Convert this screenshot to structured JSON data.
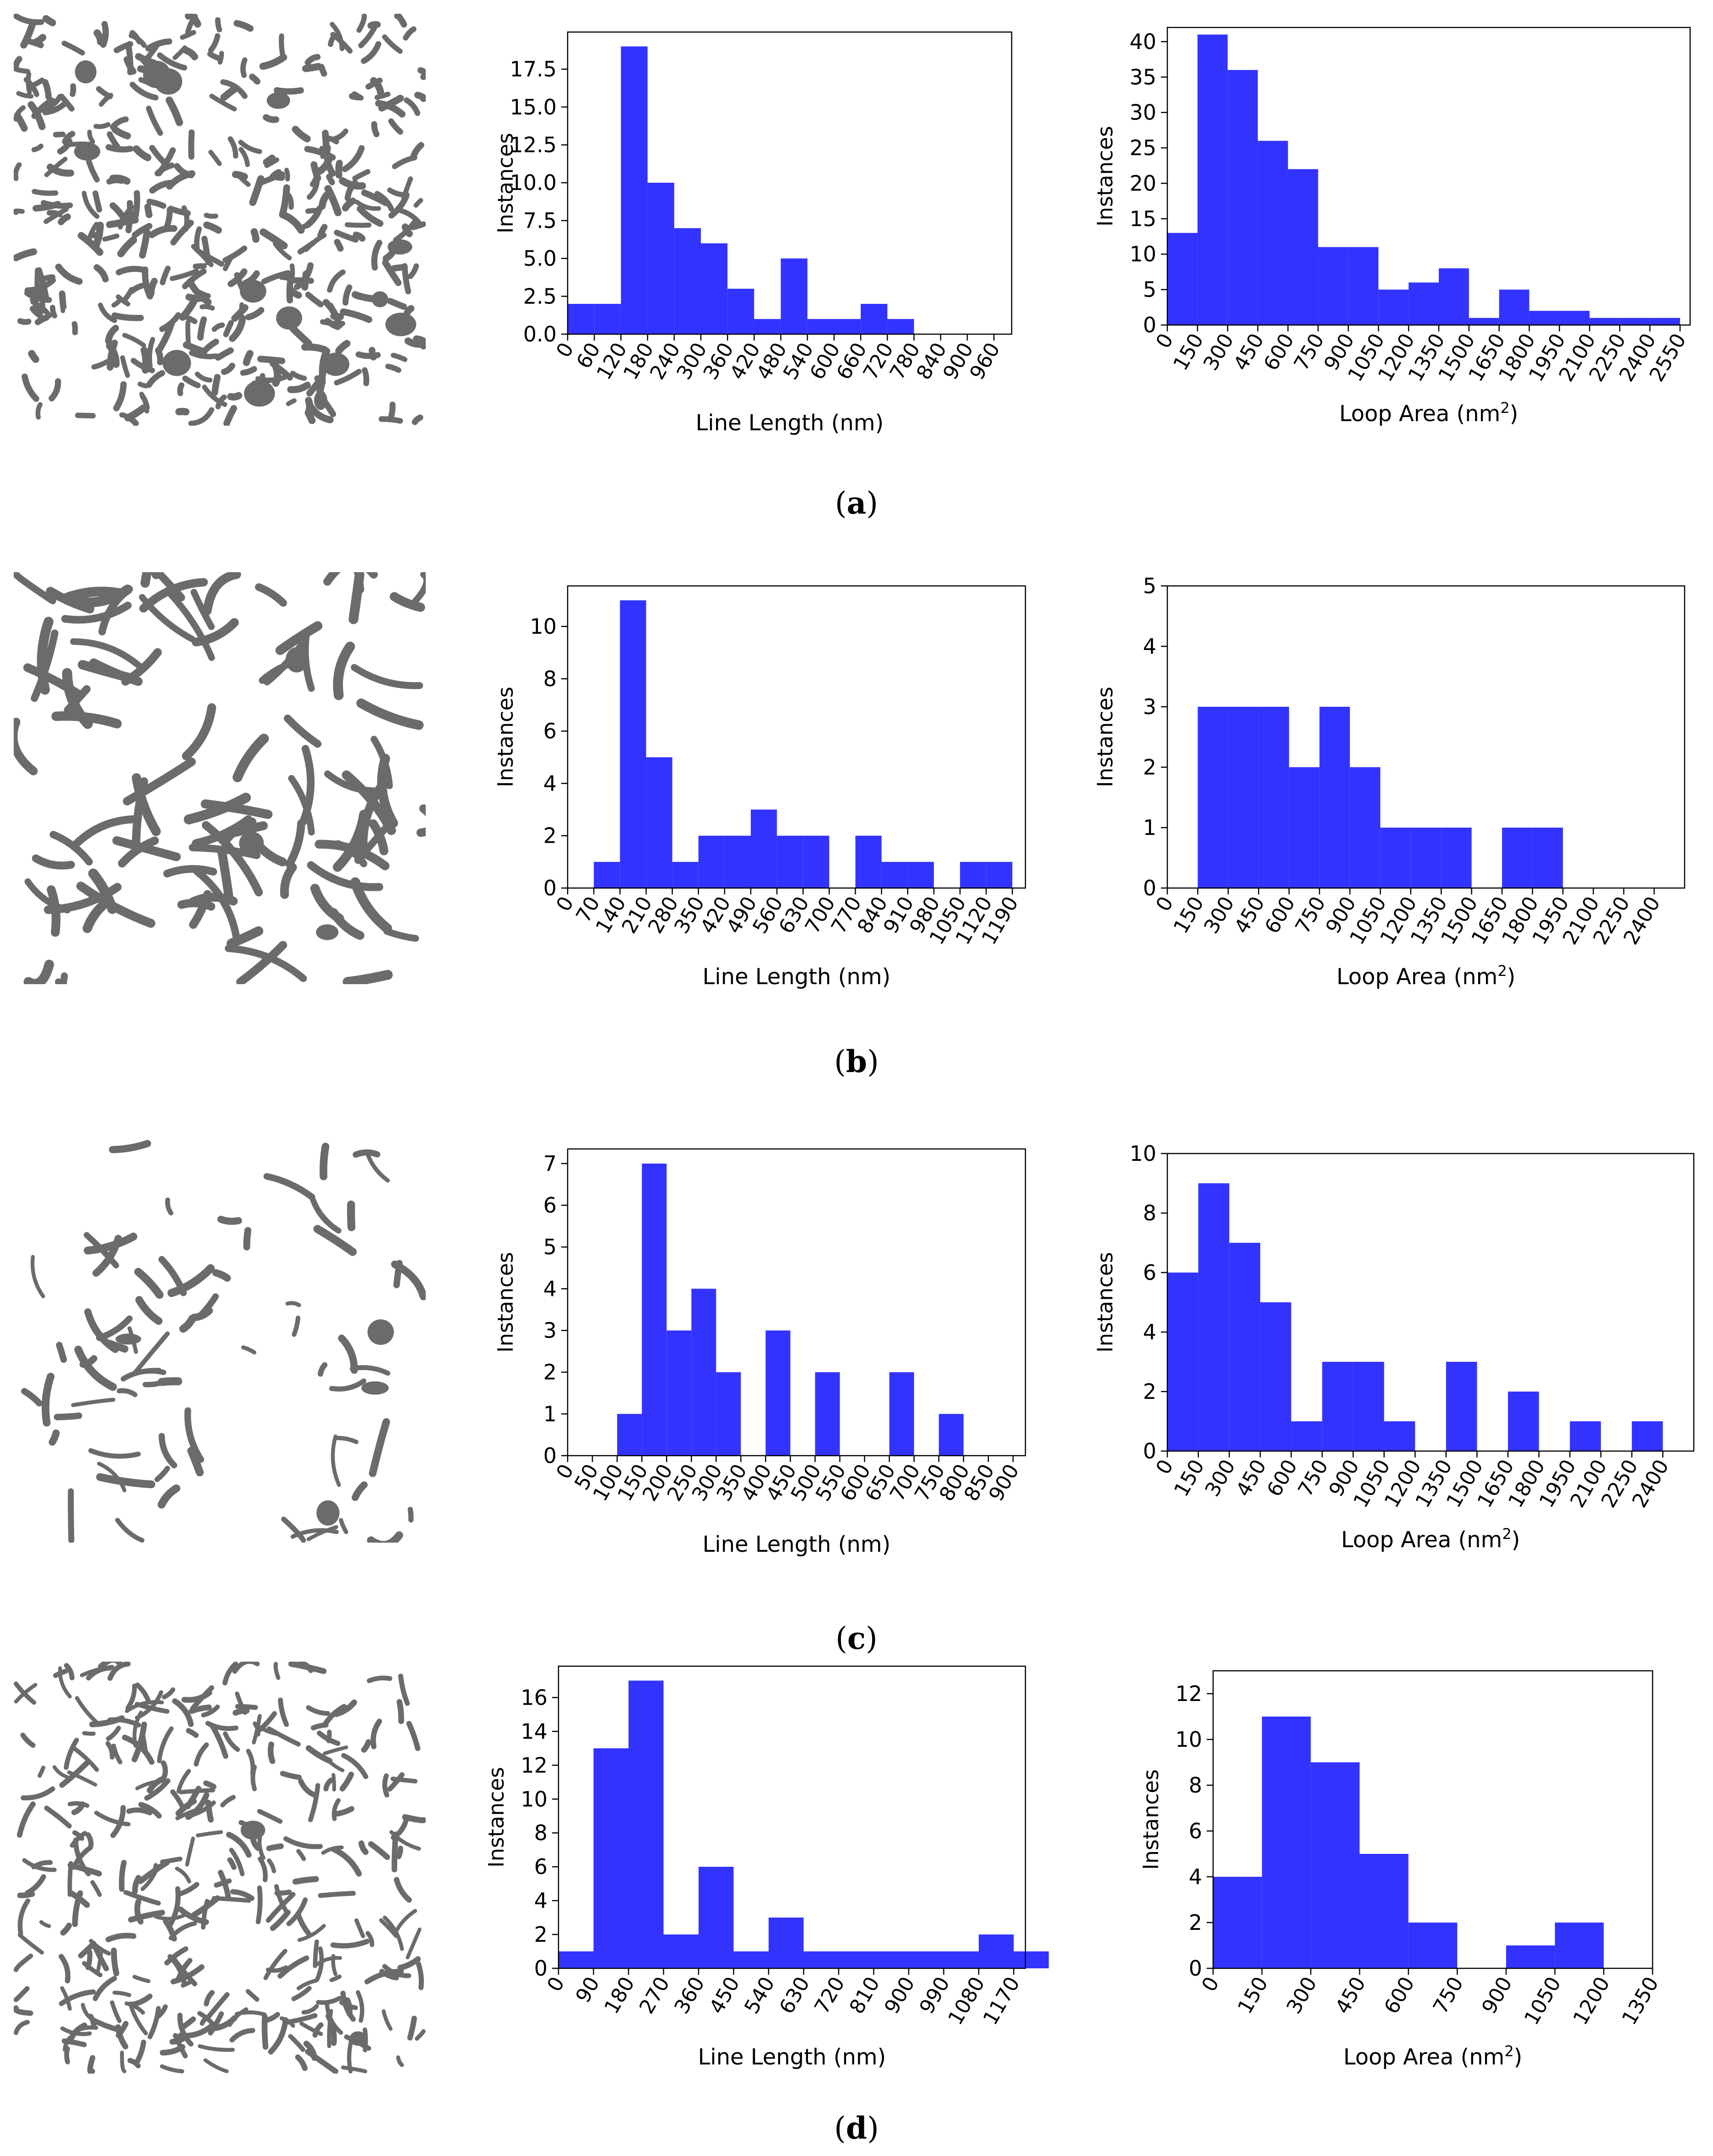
{
  "colors": {
    "bar": "#3333ff",
    "grain": "#6b6b6b",
    "axis": "#000000"
  },
  "panels": [
    {
      "label": "a",
      "charts": [
        {
          "type": "bar",
          "title": "",
          "xlabel": "Line Length (nm)",
          "xlabel_sup": "",
          "ylabel": "Instances",
          "bin_width": 60,
          "xlim": [
            0,
            1000
          ],
          "ylim": [
            0,
            19.95
          ],
          "xticks": [
            "0",
            "60",
            "120",
            "180",
            "240",
            "300",
            "360",
            "420",
            "480",
            "540",
            "600",
            "660",
            "720",
            "780",
            "840",
            "900",
            "960"
          ],
          "yticks": [
            "0.0",
            "2.5",
            "5.0",
            "7.5",
            "10.0",
            "12.5",
            "15.0",
            "17.5"
          ],
          "ytick_values": [
            0,
            2.5,
            5,
            7.5,
            10,
            12.5,
            15,
            17.5
          ],
          "values": [
            2,
            2,
            19,
            10,
            7,
            6,
            3,
            1,
            5,
            1,
            1,
            2,
            1,
            0,
            0,
            0
          ]
        },
        {
          "type": "bar",
          "title": "",
          "xlabel": "Loop Area (nm",
          "xlabel_sup": "2",
          "ylabel": "Instances",
          "bin_width": 150,
          "xlim": [
            0,
            2600
          ],
          "ylim": [
            0,
            42
          ],
          "xticks": [
            "0",
            "150",
            "300",
            "450",
            "600",
            "750",
            "900",
            "1050",
            "1200",
            "1350",
            "1500",
            "1650",
            "1800",
            "1950",
            "2100",
            "2250",
            "2400",
            "2550"
          ],
          "yticks": [
            "0",
            "5",
            "10",
            "15",
            "20",
            "25",
            "30",
            "35",
            "40"
          ],
          "ytick_values": [
            0,
            5,
            10,
            15,
            20,
            25,
            30,
            35,
            40
          ],
          "values": [
            13,
            41,
            36,
            26,
            22,
            11,
            11,
            5,
            6,
            8,
            1,
            5,
            2,
            2,
            1,
            1,
            1
          ]
        }
      ]
    },
    {
      "label": "b",
      "charts": [
        {
          "type": "bar",
          "title": "",
          "xlabel": "Line Length (nm)",
          "xlabel_sup": "",
          "ylabel": "Instances",
          "bin_width": 70,
          "xlim": [
            0,
            1225
          ],
          "ylim": [
            0,
            11.55
          ],
          "xticks": [
            "0",
            "70",
            "140",
            "210",
            "280",
            "350",
            "420",
            "490",
            "560",
            "630",
            "700",
            "770",
            "840",
            "910",
            "980",
            "1050",
            "1120",
            "1190"
          ],
          "yticks": [
            "0",
            "2",
            "4",
            "6",
            "8",
            "10"
          ],
          "ytick_values": [
            0,
            2,
            4,
            6,
            8,
            10
          ],
          "values": [
            0,
            1,
            11,
            5,
            1,
            2,
            2,
            3,
            2,
            2,
            0,
            2,
            1,
            1,
            0,
            1,
            1
          ]
        },
        {
          "type": "bar",
          "title": "",
          "xlabel": "Loop Area (nm",
          "xlabel_sup": "2",
          "ylabel": "Instances",
          "bin_width": 150,
          "xlim": [
            0,
            2550
          ],
          "ylim": [
            0,
            5
          ],
          "xticks": [
            "0",
            "150",
            "300",
            "450",
            "600",
            "750",
            "900",
            "1050",
            "1200",
            "1350",
            "1500",
            "1650",
            "1800",
            "1950",
            "2100",
            "2250",
            "2400"
          ],
          "yticks": [
            "0",
            "1",
            "2",
            "3",
            "4",
            "5"
          ],
          "ytick_values": [
            0,
            1,
            2,
            3,
            4,
            5
          ],
          "values": [
            0,
            3,
            3,
            3,
            2,
            3,
            2,
            1,
            1,
            1,
            0,
            1,
            1,
            0,
            0,
            0
          ]
        }
      ]
    },
    {
      "label": "c",
      "charts": [
        {
          "type": "bar",
          "title": "",
          "xlabel": "Line Length (nm)",
          "xlabel_sup": "",
          "ylabel": "Instances",
          "bin_width": 50,
          "xlim": [
            0,
            925
          ],
          "ylim": [
            0,
            7.35
          ],
          "xticks": [
            "0",
            "50",
            "100",
            "150",
            "200",
            "250",
            "300",
            "350",
            "400",
            "450",
            "500",
            "550",
            "600",
            "650",
            "700",
            "750",
            "800",
            "850",
            "900"
          ],
          "yticks": [
            "0",
            "1",
            "2",
            "3",
            "4",
            "5",
            "6",
            "7"
          ],
          "ytick_values": [
            0,
            1,
            2,
            3,
            4,
            5,
            6,
            7
          ],
          "values": [
            0,
            0,
            1,
            7,
            3,
            4,
            2,
            0,
            3,
            0,
            2,
            0,
            0,
            2,
            0,
            1,
            0,
            0
          ]
        },
        {
          "type": "bar",
          "title": "",
          "xlabel": "Loop Area (nm",
          "xlabel_sup": "2",
          "ylabel": "Instances",
          "bin_width": 150,
          "xlim": [
            0,
            2550
          ],
          "ylim": [
            0,
            10
          ],
          "xticks": [
            "0",
            "150",
            "300",
            "450",
            "600",
            "750",
            "900",
            "1050",
            "1200",
            "1350",
            "1500",
            "1650",
            "1800",
            "1950",
            "2100",
            "2250",
            "2400"
          ],
          "yticks": [
            "0",
            "2",
            "4",
            "6",
            "8",
            "10"
          ],
          "ytick_values": [
            0,
            2,
            4,
            6,
            8,
            10
          ],
          "values": [
            6,
            9,
            7,
            5,
            1,
            3,
            3,
            1,
            0,
            3,
            0,
            2,
            0,
            1,
            0,
            1,
            0
          ]
        }
      ]
    },
    {
      "label": "d",
      "charts": [
        {
          "type": "bar",
          "title": "",
          "xlabel": "Line Length (nm)",
          "xlabel_sup": "",
          "ylabel": "Instances",
          "bin_width": 90,
          "xlim": [
            0,
            1200
          ],
          "ylim": [
            0,
            17.85
          ],
          "xticks": [
            "0",
            "90",
            "180",
            "270",
            "360",
            "450",
            "540",
            "630",
            "720",
            "810",
            "900",
            "990",
            "1080",
            "1170"
          ],
          "yticks": [
            "0",
            "2",
            "4",
            "6",
            "8",
            "10",
            "12",
            "14",
            "16"
          ],
          "ytick_values": [
            0,
            2,
            4,
            6,
            8,
            10,
            12,
            14,
            16
          ],
          "values": [
            1,
            13,
            17,
            2,
            6,
            1,
            3,
            1,
            1,
            1,
            1,
            1,
            2,
            1
          ]
        },
        {
          "type": "bar",
          "title": "",
          "xlabel": "Loop Area (nm",
          "xlabel_sup": "2",
          "ylabel": "Instances",
          "bin_width": 150,
          "xlim": [
            0,
            1350
          ],
          "ylim": [
            0,
            13
          ],
          "xticks": [
            "0",
            "150",
            "300",
            "450",
            "600",
            "750",
            "900",
            "1050",
            "1200",
            "1350"
          ],
          "yticks": [
            "0",
            "2",
            "4",
            "6",
            "8",
            "10",
            "12"
          ],
          "ytick_values": [
            0,
            2,
            4,
            6,
            8,
            10,
            12
          ],
          "values": [
            4,
            11,
            9,
            5,
            2,
            0,
            1,
            2,
            0
          ]
        }
      ]
    }
  ]
}
